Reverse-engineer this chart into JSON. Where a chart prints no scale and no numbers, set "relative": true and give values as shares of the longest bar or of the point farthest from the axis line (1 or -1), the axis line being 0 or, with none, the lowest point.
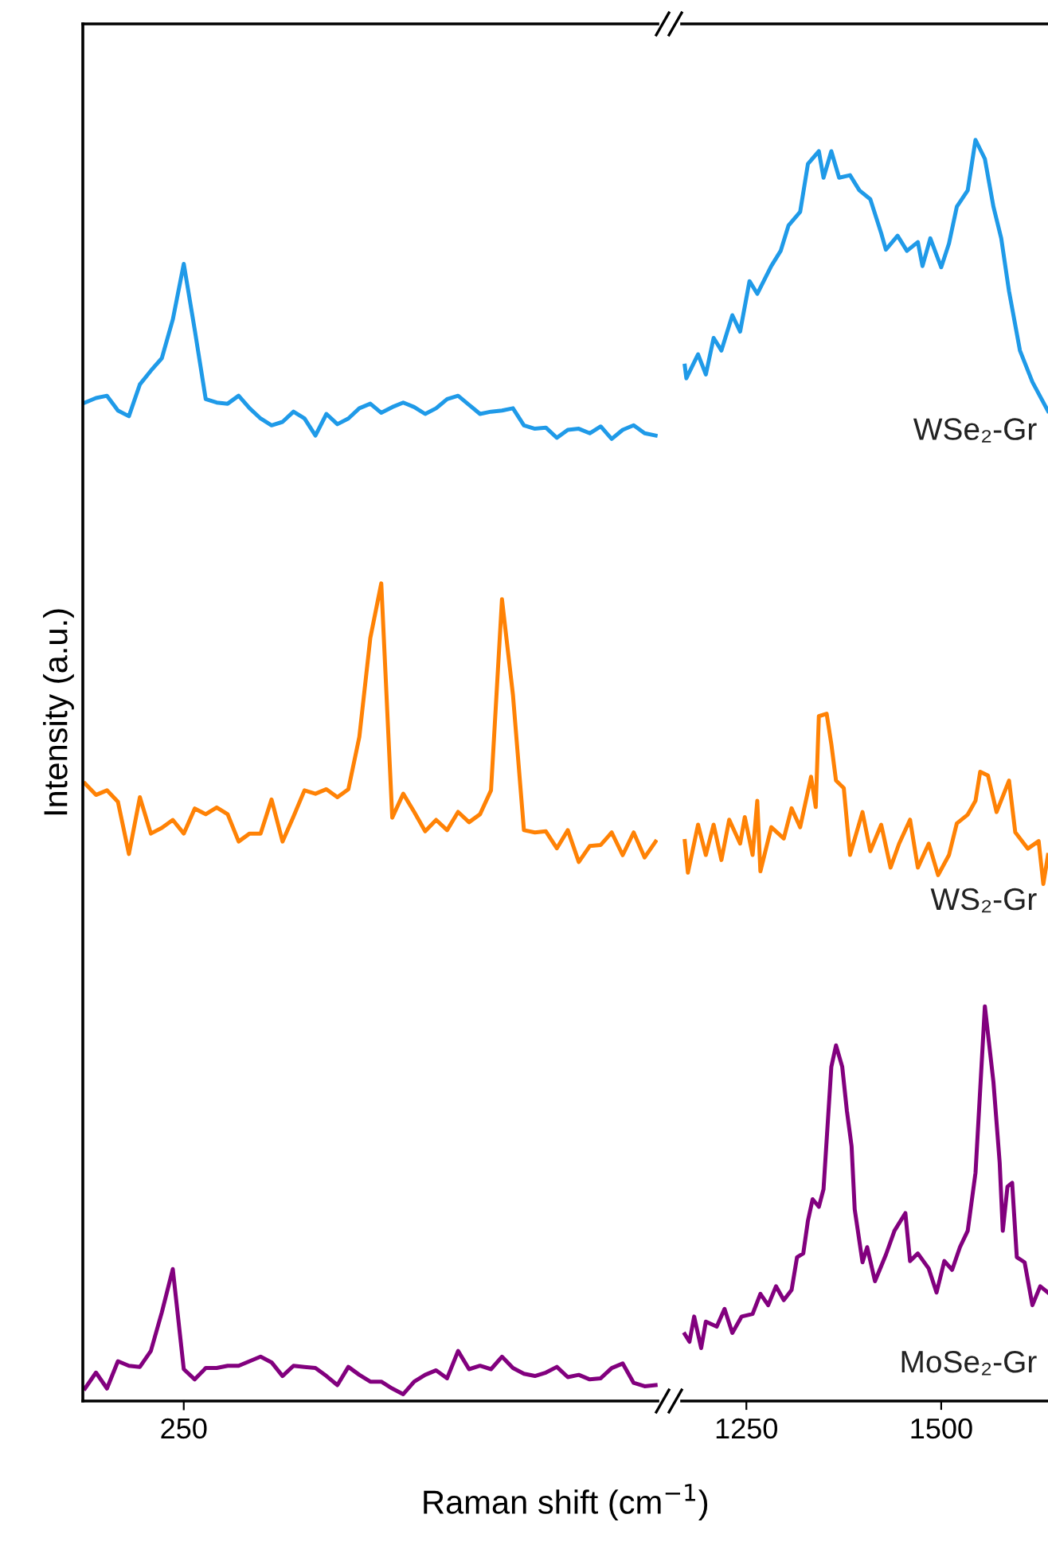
{
  "chart_data": [
    {
      "type": "line",
      "relative": true,
      "xlabel": "Raman shift (cm$^{−1}$)",
      "ylabel": "Intensity (a.u.)",
      "annotations": [
        "250"
      ],
      "legend": false,
      "grid": false,
      "categories": [
        null,
        null,
        null,
        null,
        null,
        null,
        null,
        null,
        null,
        null,
        null,
        null,
        null,
        null,
        null,
        null,
        null,
        null,
        null,
        null,
        null,
        null,
        null,
        null,
        null,
        null,
        null,
        null,
        null,
        null,
        null,
        null,
        null,
        null,
        null,
        null,
        null,
        null,
        null,
        null,
        null,
        null,
        null,
        null,
        null,
        null,
        null,
        null,
        null,
        null,
        null,
        null,
        null
      ],
      "series": [
        {
          "color": "#1f9ae8",
          "values": [
            0.878,
            0.882,
            0.884,
            0.871,
            0.866,
            0.894,
            0.906,
            0.917,
            0.951,
            1.0,
            0.942,
            0.881,
            0.878,
            0.877,
            0.884,
            0.873,
            0.864,
            0.858,
            0.861,
            0.87,
            0.864,
            0.849,
            0.868,
            0.859,
            0.864,
            0.873,
            0.877,
            0.869,
            0.874,
            0.878,
            0.874,
            0.868,
            0.873,
            0.881,
            0.884,
            0.876,
            0.868,
            0.87,
            0.871,
            0.873,
            0.858,
            0.855,
            0.856,
            0.847,
            0.854,
            0.855,
            0.851,
            0.857,
            0.846,
            0.854,
            0.858,
            0.851,
            0.849
          ]
        },
        {
          "color": "#ff8205",
          "values": [
            0.543,
            0.533,
            0.537,
            0.527,
            0.481,
            0.531,
            0.499,
            0.504,
            0.511,
            0.499,
            0.521,
            0.516,
            0.522,
            0.516,
            0.492,
            0.499,
            0.499,
            0.529,
            0.492,
            0.514,
            0.537,
            0.534,
            0.538,
            0.531,
            0.538,
            0.584,
            0.671,
            0.719,
            0.513,
            0.534,
            0.518,
            0.501,
            0.511,
            0.502,
            0.518,
            0.509,
            0.516,
            0.537,
            0.705,
            0.621,
            0.502,
            0.5,
            0.501,
            0.486,
            0.502,
            0.474,
            0.488,
            0.489,
            0.5,
            0.48,
            0.5,
            0.478,
            0.492
          ]
        },
        {
          "color": "#82007e",
          "values": [
            0.011,
            0.025,
            0.011,
            0.035,
            0.031,
            0.03,
            0.044,
            0.078,
            0.116,
            0.028,
            0.019,
            0.029,
            0.029,
            0.031,
            0.031,
            0.035,
            0.039,
            0.034,
            0.022,
            0.031,
            0.03,
            0.029,
            0.022,
            0.014,
            0.03,
            0.023,
            0.017,
            0.017,
            0.011,
            0.006,
            0.017,
            0.023,
            0.027,
            0.02,
            0.044,
            0.028,
            0.031,
            0.028,
            0.039,
            0.029,
            0.024,
            0.022,
            0.025,
            0.03,
            0.021,
            0.023,
            0.019,
            0.02,
            0.029,
            0.033,
            0.016,
            0.013,
            0.014
          ]
        }
      ]
    },
    {
      "type": "line",
      "relative": true,
      "xlim": [
        1167,
        1637
      ],
      "xticks": [
        1250,
        1500
      ],
      "legend": false,
      "grid": false,
      "series": [
        {
          "name": "WSe₂-Gr",
          "color": "#1f9ae8",
          "x": [
            1171,
            1173,
            1188,
            1198,
            1208,
            1218,
            1232,
            1242,
            1254,
            1264,
            1282,
            1294,
            1304,
            1319,
            1329,
            1343,
            1349,
            1359,
            1369,
            1383,
            1395,
            1409,
            1423,
            1429,
            1444,
            1456,
            1470,
            1476,
            1486,
            1500,
            1510,
            1520,
            1534,
            1544,
            1556,
            1567,
            1577,
            1587,
            1601,
            1617,
            1637
          ],
          "values": [
            0.821,
            0.811,
            0.83,
            0.814,
            0.843,
            0.833,
            0.861,
            0.848,
            0.888,
            0.878,
            0.9,
            0.912,
            0.932,
            0.943,
            0.981,
            0.991,
            0.97,
            0.991,
            0.97,
            0.972,
            0.96,
            0.953,
            0.926,
            0.913,
            0.924,
            0.912,
            0.919,
            0.9,
            0.922,
            0.899,
            0.918,
            0.947,
            0.96,
            1.0,
            0.985,
            0.947,
            0.922,
            0.88,
            0.833,
            0.808,
            0.785
          ]
        },
        {
          "name": "WS₂-Gr",
          "color": "#ff8205",
          "x": [
            1171,
            1175,
            1188,
            1198,
            1208,
            1218,
            1228,
            1242,
            1248,
            1258,
            1264,
            1268,
            1282,
            1298,
            1308,
            1319,
            1333,
            1339,
            1343,
            1353,
            1359,
            1365,
            1375,
            1383,
            1399,
            1409,
            1423,
            1435,
            1446,
            1460,
            1470,
            1484,
            1496,
            1510,
            1520,
            1534,
            1544,
            1550,
            1560,
            1571,
            1587,
            1595,
            1611,
            1625,
            1631,
            1637
          ],
          "values": [
            0.444,
            0.419,
            0.457,
            0.433,
            0.457,
            0.429,
            0.461,
            0.442,
            0.463,
            0.433,
            0.476,
            0.42,
            0.455,
            0.446,
            0.47,
            0.455,
            0.495,
            0.471,
            0.543,
            0.545,
            0.521,
            0.492,
            0.486,
            0.433,
            0.467,
            0.436,
            0.457,
            0.423,
            0.442,
            0.461,
            0.423,
            0.442,
            0.417,
            0.433,
            0.458,
            0.465,
            0.476,
            0.499,
            0.496,
            0.467,
            0.492,
            0.451,
            0.438,
            0.444,
            0.41,
            0.433
          ]
        },
        {
          "name": "MoSe₂-Gr",
          "color": "#82007e",
          "x": [
            1171,
            1177,
            1183,
            1192,
            1198,
            1212,
            1222,
            1232,
            1244,
            1258,
            1268,
            1278,
            1288,
            1298,
            1308,
            1315,
            1323,
            1329,
            1335,
            1343,
            1349,
            1359,
            1365,
            1373,
            1379,
            1385,
            1389,
            1399,
            1405,
            1415,
            1429,
            1440,
            1454,
            1460,
            1470,
            1484,
            1494,
            1504,
            1514,
            1524,
            1534,
            1544,
            1556,
            1567,
            1575,
            1579,
            1585,
            1591,
            1597,
            1607,
            1617,
            1627,
            1637
          ],
          "values": [
            0.053,
            0.047,
            0.067,
            0.042,
            0.063,
            0.059,
            0.073,
            0.054,
            0.067,
            0.069,
            0.085,
            0.076,
            0.091,
            0.08,
            0.088,
            0.114,
            0.117,
            0.143,
            0.16,
            0.154,
            0.168,
            0.265,
            0.282,
            0.265,
            0.23,
            0.202,
            0.152,
            0.11,
            0.122,
            0.095,
            0.116,
            0.135,
            0.149,
            0.111,
            0.117,
            0.105,
            0.086,
            0.111,
            0.104,
            0.122,
            0.135,
            0.181,
            0.313,
            0.253,
            0.189,
            0.135,
            0.17,
            0.173,
            0.114,
            0.11,
            0.076,
            0.091,
            0.086
          ]
        }
      ]
    }
  ]
}
